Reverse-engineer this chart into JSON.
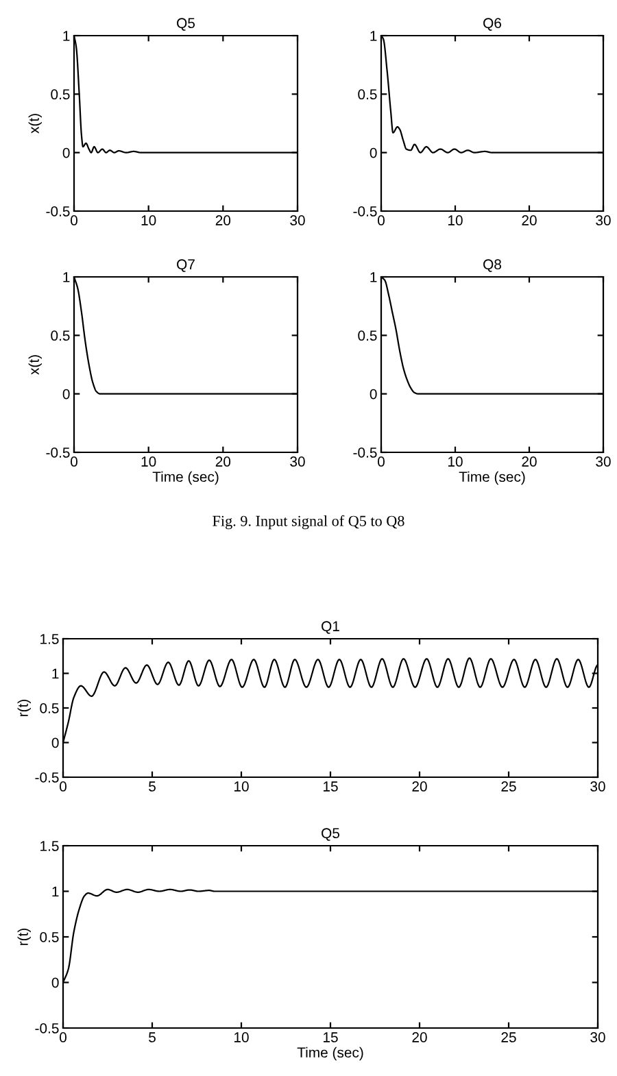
{
  "chart_data": [
    {
      "type": "line",
      "title": "Q5",
      "ylabel": "x(t)",
      "xlim": [
        0,
        30
      ],
      "ylim": [
        -0.5,
        1
      ],
      "xticks": [
        0,
        10,
        20,
        30
      ],
      "yticks": [
        -0.5,
        0,
        0.5,
        1
      ],
      "grid": false,
      "legend": false,
      "series": [
        {
          "color": "#000000",
          "x": [
            0,
            0.3,
            0.7,
            1.0,
            1.2,
            1.6,
            2.0,
            2.3,
            2.7,
            3.2,
            3.8,
            4.3,
            4.8,
            5.4,
            6.0,
            7.0,
            8.0,
            9.0,
            30
          ],
          "values": [
            1,
            0.9,
            0.5,
            0.15,
            0.05,
            0.08,
            0.03,
            0,
            0.05,
            0,
            0.03,
            0,
            0.02,
            0,
            0.015,
            0,
            0.01,
            0,
            0
          ]
        }
      ]
    },
    {
      "type": "line",
      "title": "Q6",
      "xlim": [
        0,
        30
      ],
      "ylim": [
        -0.5,
        1
      ],
      "xticks": [
        0,
        10,
        20,
        30
      ],
      "yticks": [
        -0.5,
        0,
        0.5,
        1
      ],
      "grid": false,
      "legend": false,
      "series": [
        {
          "color": "#000000",
          "x": [
            0,
            0.3,
            0.8,
            1.3,
            1.6,
            2.2,
            2.5,
            3.0,
            3.4,
            4.0,
            4.5,
            5.3,
            6.1,
            7.0,
            8.0,
            9.0,
            9.9,
            10.8,
            11.7,
            12.6,
            14.0,
            15.0,
            30
          ],
          "values": [
            1,
            0.97,
            0.7,
            0.35,
            0.17,
            0.22,
            0.2,
            0.1,
            0.03,
            0.02,
            0.07,
            0,
            0.05,
            0,
            0.03,
            0,
            0.03,
            0,
            0.02,
            0,
            0.01,
            0,
            0
          ]
        }
      ]
    },
    {
      "type": "line",
      "title": "Q7",
      "xlabel": "Time (sec)",
      "ylabel": "x(t)",
      "xlim": [
        0,
        30
      ],
      "ylim": [
        -0.5,
        1
      ],
      "xticks": [
        0,
        10,
        20,
        30
      ],
      "yticks": [
        -0.5,
        0,
        0.5,
        1
      ],
      "grid": false,
      "legend": false,
      "series": [
        {
          "color": "#000000",
          "x": [
            0,
            0.5,
            1.0,
            1.5,
            2.0,
            2.5,
            3.0,
            3.5,
            30
          ],
          "values": [
            1,
            0.9,
            0.7,
            0.45,
            0.25,
            0.1,
            0.02,
            0,
            0
          ]
        }
      ]
    },
    {
      "type": "line",
      "title": "Q8",
      "xlabel": "Time (sec)",
      "xlim": [
        0,
        30
      ],
      "ylim": [
        -0.5,
        1
      ],
      "xticks": [
        0,
        10,
        20,
        30
      ],
      "yticks": [
        -0.5,
        0,
        0.5,
        1
      ],
      "grid": false,
      "legend": false,
      "annotations": [
        "Fig. 9. Input signal of Q5 to Q8"
      ],
      "series": [
        {
          "color": "#000000",
          "x": [
            0,
            0.5,
            1.0,
            1.5,
            2.0,
            2.5,
            3.0,
            3.5,
            4.0,
            4.5,
            5.0,
            30
          ],
          "values": [
            1,
            0.97,
            0.85,
            0.7,
            0.55,
            0.37,
            0.22,
            0.12,
            0.05,
            0.01,
            0,
            0
          ]
        }
      ]
    },
    {
      "type": "line",
      "title": "Q1",
      "ylabel": "r(t)",
      "xlim": [
        0,
        30
      ],
      "ylim": [
        -0.5,
        1.5
      ],
      "xticks": [
        0,
        5,
        10,
        15,
        20,
        25,
        30
      ],
      "yticks": [
        -0.5,
        0,
        0.5,
        1,
        1.5
      ],
      "grid": false,
      "legend": false,
      "series": [
        {
          "color": "#000000",
          "x": [
            0,
            0.3,
            0.6,
            1.0,
            1.6,
            2.3,
            2.9,
            3.5,
            4.1,
            4.7,
            5.3,
            5.9,
            6.5,
            7.05,
            7.6,
            8.2,
            8.8,
            9.45,
            10.05,
            10.7,
            11.3,
            11.85,
            12.45,
            13.0,
            13.65,
            14.3,
            14.9,
            15.5,
            16.1,
            16.7,
            17.3,
            17.9,
            18.5,
            19.1,
            19.75,
            20.4,
            21.0,
            21.6,
            22.2,
            22.8,
            23.4,
            24.0,
            24.65,
            25.3,
            25.9,
            26.5,
            27.1,
            27.7,
            28.3,
            28.9,
            29.5,
            30
          ],
          "values": [
            0,
            0.3,
            0.65,
            0.82,
            0.67,
            1.02,
            0.82,
            1.08,
            0.86,
            1.12,
            0.84,
            1.16,
            0.83,
            1.18,
            0.82,
            1.19,
            0.81,
            1.2,
            0.8,
            1.2,
            0.8,
            1.2,
            0.8,
            1.2,
            0.8,
            1.2,
            0.8,
            1.2,
            0.8,
            1.2,
            0.8,
            1.21,
            0.8,
            1.21,
            0.8,
            1.21,
            0.8,
            1.21,
            0.8,
            1.22,
            0.8,
            1.21,
            0.8,
            1.2,
            0.8,
            1.2,
            0.8,
            1.21,
            0.8,
            1.2,
            0.8,
            1.12
          ]
        }
      ]
    },
    {
      "type": "line",
      "title": "Q5",
      "xlabel": "Time (sec)",
      "ylabel": "r(t)",
      "xlim": [
        0,
        30
      ],
      "ylim": [
        -0.5,
        1.5
      ],
      "xticks": [
        0,
        5,
        10,
        15,
        20,
        25,
        30
      ],
      "yticks": [
        -0.5,
        0,
        0.5,
        1,
        1.5
      ],
      "grid": false,
      "legend": false,
      "series": [
        {
          "color": "#000000",
          "x": [
            0,
            0.3,
            0.6,
            0.9,
            1.2,
            1.4,
            1.9,
            2.5,
            3.0,
            3.6,
            4.2,
            4.8,
            5.4,
            6.0,
            6.6,
            7.1,
            7.6,
            8.2,
            8.5,
            30
          ],
          "values": [
            0,
            0.15,
            0.55,
            0.8,
            0.95,
            0.98,
            0.95,
            1.02,
            0.99,
            1.02,
            0.99,
            1.02,
            1.0,
            1.02,
            1.0,
            1.015,
            1.0,
            1.01,
            1.0,
            1.0
          ]
        }
      ]
    }
  ]
}
